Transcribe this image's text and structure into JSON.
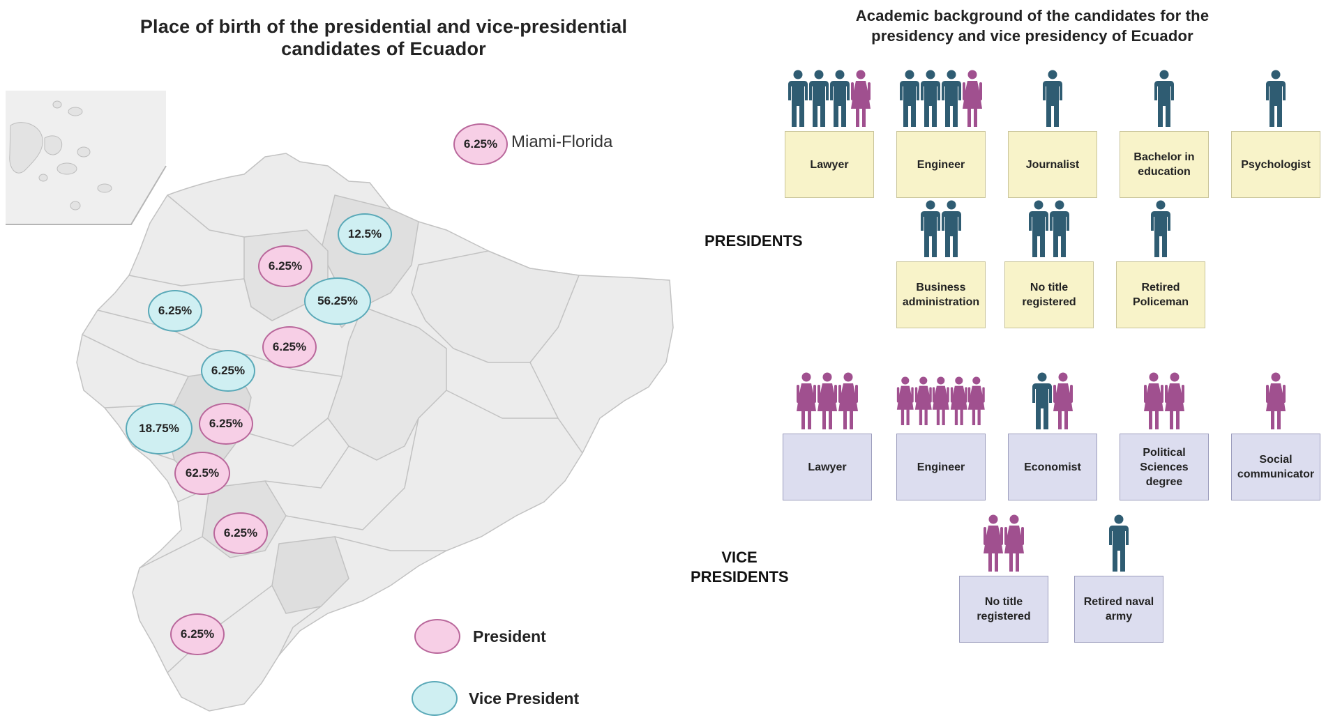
{
  "map": {
    "title": "Place of birth of the presidential and vice-presidential candidates of Ecuador",
    "miami_label": "Miami-Florida",
    "bubbles": [
      {
        "value": "6.25%",
        "type": "president"
      },
      {
        "value": "12.5%",
        "type": "vice"
      },
      {
        "value": "6.25%",
        "type": "president"
      },
      {
        "value": "56.25%",
        "type": "vice"
      },
      {
        "value": "6.25%",
        "type": "vice"
      },
      {
        "value": "6.25%",
        "type": "president"
      },
      {
        "value": "6.25%",
        "type": "vice"
      },
      {
        "value": "18.75%",
        "type": "vice"
      },
      {
        "value": "6.25%",
        "type": "president"
      },
      {
        "value": "62.5%",
        "type": "president"
      },
      {
        "value": "6.25%",
        "type": "president"
      },
      {
        "value": "6.25%",
        "type": "president"
      }
    ],
    "legend": {
      "president": "President",
      "vice_president": "Vice President"
    },
    "colors": {
      "president_fill": "#f7cfe6",
      "vice_fill": "#cfeff2",
      "land": "#ececec",
      "land_dark": "#dedede"
    }
  },
  "education": {
    "title": "Academic background  of the candidates for the presidency and vice presidency of Ecuador",
    "presidents_label": "PRESIDENTS",
    "vice_presidents_label": "VICE PRESIDENTS",
    "colors": {
      "male": "#2f5c72",
      "female": "#a0508f",
      "president_card": "#f8f3c9",
      "vice_card": "#dcddef"
    },
    "presidents": [
      {
        "label": "Lawyer",
        "figures": [
          "m",
          "m",
          "m",
          "f"
        ]
      },
      {
        "label": "Engineer",
        "figures": [
          "m",
          "m",
          "m",
          "f"
        ]
      },
      {
        "label": "Journalist",
        "figures": [
          "m"
        ]
      },
      {
        "label": "Bachelor in education",
        "figures": [
          "m"
        ]
      },
      {
        "label": "Psychologist",
        "figures": [
          "m"
        ]
      },
      {
        "label": "Business administration",
        "figures": [
          "m",
          "m"
        ]
      },
      {
        "label": "No title registered",
        "figures": [
          "m",
          "m"
        ]
      },
      {
        "label": "Retired Policeman",
        "figures": [
          "m"
        ]
      }
    ],
    "vice_presidents": [
      {
        "label": "Lawyer",
        "figures": [
          "f",
          "f",
          "f"
        ]
      },
      {
        "label": "Engineer",
        "figures": [
          "f",
          "f",
          "f",
          "f",
          "f"
        ]
      },
      {
        "label": "Economist",
        "figures": [
          "m",
          "f"
        ]
      },
      {
        "label": "Political Sciences degree",
        "figures": [
          "f",
          "f"
        ]
      },
      {
        "label": "Social communicator",
        "figures": [
          "f"
        ]
      },
      {
        "label": "No title registered",
        "figures": [
          "f",
          "f"
        ]
      },
      {
        "label": "Retired naval army",
        "figures": [
          "m"
        ]
      }
    ]
  }
}
